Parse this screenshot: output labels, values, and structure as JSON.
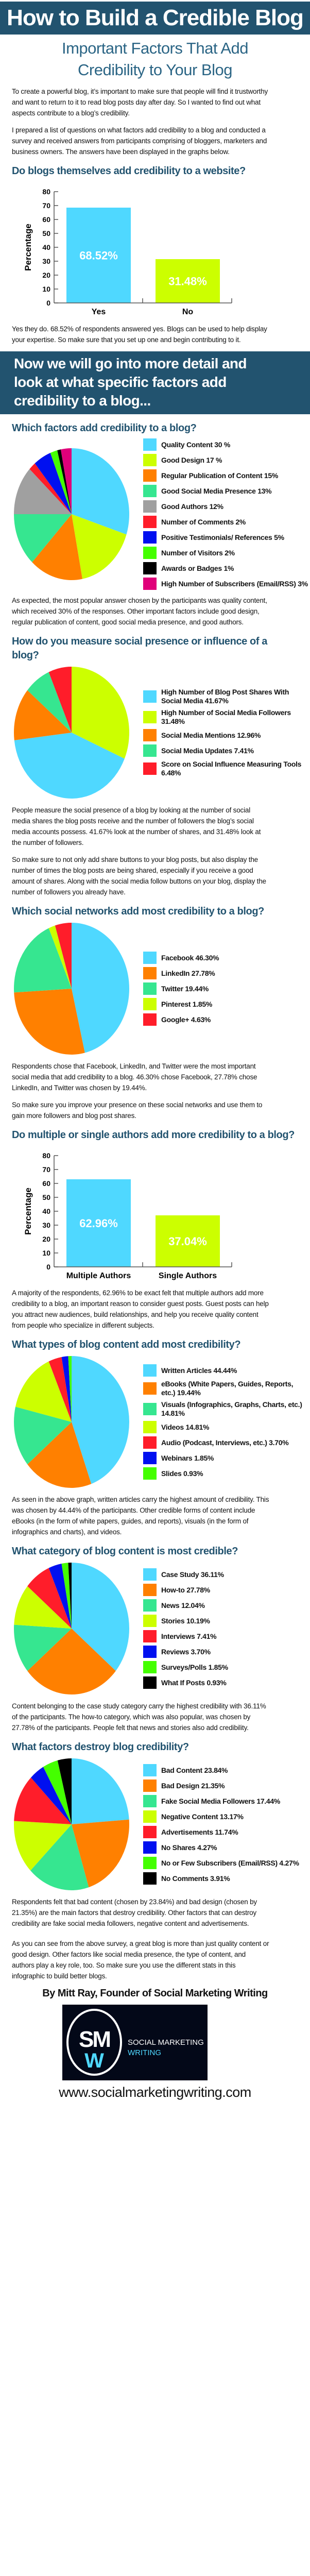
{
  "header": {
    "title": "How to Build a Credible Blog",
    "subtitle_lines": [
      "Important Factors That Add",
      "Credibility to Your Blog"
    ]
  },
  "intro": {
    "paragraphs": [
      "To create a powerful blog, it’s important to make sure that people will find it trustworthy and want to return to it to read blog posts day after day. So I wanted to find out what aspects contribute to a blog’s credibility.",
      "I prepared a list of questions on what factors add credibility to a blog and conducted a survey and received answers from participants comprising of bloggers, marketers and business owners. The answers have been displayed in the graphs below."
    ]
  },
  "banner": {
    "lines": [
      "Now we will go into more detail and",
      "look at what specific factors add",
      "credibility to a blog..."
    ]
  },
  "sections": [
    {
      "heading": "Do blogs themselves add credibility to a website?",
      "paragraphs": [
        "Yes they do. 68.52% of respondents answered yes. Blogs can be used to help display your expertise. So make sure that you set up one and begin contributing to it."
      ]
    },
    {
      "heading": "Which factors add credibility to a blog?",
      "paragraphs": [
        "As expected, the most popular answer chosen by the participants was quality content, which received 30% of the responses. Other important factors include good design, regular publication of content, good social media presence, and good authors."
      ]
    },
    {
      "heading": "How do you measure social presence or influence of a blog?",
      "paragraphs": [
        "People measure the social presence of a blog by looking at the number of social media shares the blog posts receive and the number of followers the blog’s social media accounts possess. 41.67% look at the number of shares, and 31.48% look at the number of followers.",
        "So make sure to not only add share buttons to your blog posts, but also display the number of times the blog posts are being shared, especially if you receive a good amount of shares. Along with the social media follow buttons on your blog, display the number of followers you already have."
      ]
    },
    {
      "heading": "Which social networks add most credibility to a blog?",
      "paragraphs": [
        "Respondents chose that Facebook, LinkedIn, and Twitter were the most important social media that add credibility to a blog. 46.30% chose Facebook, 27.78% chose LinkedIn, and Twitter was chosen by 19.44%.",
        "So make sure you improve your presence on these social networks and use them to gain more followers and blog post shares."
      ]
    },
    {
      "heading": "Do multiple or single authors add more credibility to a blog?",
      "paragraphs": [
        "A majority of the respondents, 62.96% to be exact felt that multiple authors add more credibility to a blog, an important reason to consider guest posts. Guest posts can help you attract new audiences, build relationships, and help you receive quality content from people who specialize in different subjects."
      ]
    },
    {
      "heading": "What types of blog content add most credibility?",
      "paragraphs": [
        "As seen in the above graph, written articles carry the highest amount of credibility. This was chosen by 44.44% of the participants. Other credible forms of content include eBooks (in the form of white papers, guides, and reports), visuals (in the form of infographics and charts), and videos."
      ]
    },
    {
      "heading": "What category of blog content is most credible?",
      "paragraphs": [
        "Content belonging to the case study category carry the highest credibility with 36.11% of the participants. The how-to category, which was also popular, was chosen by 27.78% of the participants. People felt that news and stories also add credibility."
      ]
    },
    {
      "heading": "What factors destroy blog credibility?",
      "paragraphs": [
        "Respondents felt that bad content (chosen by 23.84%) and bad design (chosen by 21.35%) are the main factors that destroy credibility. Other factors that can destroy credibility are fake social media followers, negative content and advertisements."
      ]
    }
  ],
  "conclusion": {
    "paragraphs": [
      "As you can see from the above survey, a great blog is more than just quality content or good design. Other factors like social media presence, the type of content, and authors play a key role, too. So make sure you use the different stats in this infographic to build better blogs."
    ],
    "byline": "By Mitt Ray, Founder of Social Marketing Writing",
    "logo": {
      "mark_top": "SM",
      "mark_bottom": "W",
      "line1": "SOCIAL MARKETING",
      "line2": "WRITING"
    },
    "url": "www.socialmarketingwriting.com"
  },
  "colors": {
    "heading": "#22536f",
    "cyan": "#4fd8ff",
    "lime": "#ccff00",
    "orange": "#ff8000",
    "teal": "#36e690",
    "gray": "#a0a0a0",
    "red": "#ff1d2a",
    "blue": "#0010f0",
    "green": "#44ff00",
    "black": "#000000",
    "magenta": "#e0007a"
  },
  "chart_data": [
    {
      "type": "bar",
      "title": "Do blogs themselves add credibility to a website?",
      "ylabel": "Percentage",
      "ylim": [
        0,
        80
      ],
      "yticks": [
        0,
        10,
        20,
        30,
        40,
        50,
        60,
        70,
        80
      ],
      "categories": [
        "Yes",
        "No"
      ],
      "values": [
        68.52,
        31.48
      ],
      "value_labels": [
        "68.52%",
        "31.48%"
      ],
      "colors": [
        "#4fd8ff",
        "#ccff00"
      ],
      "grid": false
    },
    {
      "type": "pie",
      "title": "Which factors add credibility to a blog?",
      "slices": [
        {
          "name": "Quality Content",
          "value": 30,
          "color": "#4fd8ff"
        },
        {
          "name": "Good Design",
          "value": 17,
          "color": "#ccff00"
        },
        {
          "name": "Regular Publication of Content",
          "value": 15,
          "color": "#ff8000"
        },
        {
          "name": "Good Social Media Presence",
          "value": 13,
          "color": "#36e690"
        },
        {
          "name": "Good Authors",
          "value": 12,
          "color": "#a0a0a0"
        },
        {
          "name": "Number of Comments",
          "value": 2,
          "color": "#ff1d2a"
        },
        {
          "name": "Positive Testimonials/References",
          "value": 5,
          "color": "#0010f0"
        },
        {
          "name": "Number of Visitors",
          "value": 2,
          "color": "#44ff00"
        },
        {
          "name": "Awards or Badges",
          "value": 1,
          "color": "#000000"
        },
        {
          "name": "High Number of Subscribers (Email/RSS)",
          "value": 3,
          "color": "#e0007a"
        }
      ],
      "legend": [
        {
          "label": "Quality Content 30 %",
          "color": "#4fd8ff"
        },
        {
          "label": "Good Design 17 %",
          "color": "#ccff00"
        },
        {
          "label": "Regular Publication of Content 15%",
          "color": "#ff8000"
        },
        {
          "label": "Good Social Media Presence 13%",
          "color": "#36e690"
        },
        {
          "label": "Good Authors 12%",
          "color": "#a0a0a0"
        },
        {
          "label": "Number of Comments 2%",
          "color": "#ff1d2a"
        },
        {
          "label": "Positive Testimonials/ References 5%",
          "color": "#0010f0"
        },
        {
          "label": "Number of Visitors 2%",
          "color": "#44ff00"
        },
        {
          "label": "Awards or Badges 1%",
          "color": "#000000"
        },
        {
          "label": "High Number of Subscribers (Email/RSS) 3%",
          "color": "#e0007a"
        }
      ]
    },
    {
      "type": "pie",
      "title": "How do you measure social presence or influence of a blog?",
      "slices": [
        {
          "name": "High Number of Social Media Followers",
          "value": 31.48,
          "color": "#ccff00"
        },
        {
          "name": "High Number of Blog Post Shares With Social Media",
          "value": 41.67,
          "color": "#4fd8ff"
        },
        {
          "name": "Social Media Mentions",
          "value": 12.96,
          "color": "#ff8000"
        },
        {
          "name": "Social Media Updates",
          "value": 7.41,
          "color": "#36e690"
        },
        {
          "name": "Score on Social Influence Measuring Tools",
          "value": 6.48,
          "color": "#ff1d2a"
        }
      ],
      "legend": [
        {
          "label": "High Number of Blog Post Shares With Social Media 41.67%",
          "color": "#4fd8ff"
        },
        {
          "label": "High Number of Social Media Followers 31.48%",
          "color": "#ccff00"
        },
        {
          "label": "Social Media Mentions 12.96%",
          "color": "#ff8000"
        },
        {
          "label": "Social Media Updates 7.41%",
          "color": "#36e690"
        },
        {
          "label": "Score on Social Influence Measuring Tools 6.48%",
          "color": "#ff1d2a"
        }
      ]
    },
    {
      "type": "pie",
      "title": "Which social networks add most credibility to a blog?",
      "slices": [
        {
          "name": "Facebook",
          "value": 46.3,
          "color": "#4fd8ff"
        },
        {
          "name": "LinkedIn",
          "value": 27.78,
          "color": "#ff8000"
        },
        {
          "name": "Twitter",
          "value": 19.44,
          "color": "#36e690"
        },
        {
          "name": "Pinterest",
          "value": 1.85,
          "color": "#ccff00"
        },
        {
          "name": "Google+",
          "value": 4.63,
          "color": "#ff1d2a"
        }
      ],
      "legend": [
        {
          "label": "Facebook 46.30%",
          "color": "#4fd8ff"
        },
        {
          "label": "LinkedIn 27.78%",
          "color": "#ff8000"
        },
        {
          "label": "Twitter 19.44%",
          "color": "#36e690"
        },
        {
          "label": "Pinterest 1.85%",
          "color": "#ccff00"
        },
        {
          "label": "Google+ 4.63%",
          "color": "#ff1d2a"
        }
      ]
    },
    {
      "type": "bar",
      "title": "Do multiple or single authors add more credibility to a blog?",
      "ylabel": "Percentage",
      "ylim": [
        0,
        80
      ],
      "yticks": [
        0,
        10,
        20,
        30,
        40,
        50,
        60,
        70,
        80
      ],
      "categories": [
        "Multiple Authors",
        "Single Authors"
      ],
      "values": [
        62.96,
        37.04
      ],
      "value_labels": [
        "62.96%",
        "37.04%"
      ],
      "colors": [
        "#4fd8ff",
        "#ccff00"
      ],
      "grid": false
    },
    {
      "type": "pie",
      "title": "What types of blog content add most credibility?",
      "slices": [
        {
          "name": "Written Articles",
          "value": 44.44,
          "color": "#4fd8ff"
        },
        {
          "name": "eBooks (White Papers, Guides, Reports, etc.)",
          "value": 19.44,
          "color": "#ff8000"
        },
        {
          "name": "Visuals (Infographics, Graphs, Charts, etc.)",
          "value": 14.81,
          "color": "#36e690"
        },
        {
          "name": "Videos",
          "value": 14.81,
          "color": "#ccff00"
        },
        {
          "name": "Audio (Podcast, Interviews, etc.)",
          "value": 3.7,
          "color": "#ff1d2a"
        },
        {
          "name": "Webinars",
          "value": 1.85,
          "color": "#0010f0"
        },
        {
          "name": "Slides",
          "value": 0.93,
          "color": "#44ff00"
        }
      ],
      "legend": [
        {
          "label": "Written Articles 44.44%",
          "color": "#4fd8ff"
        },
        {
          "label": "eBooks (White Papers, Guides, Reports, etc.) 19.44%",
          "color": "#ff8000"
        },
        {
          "label": "Visuals (Infographics, Graphs, Charts, etc.) 14.81%",
          "color": "#36e690"
        },
        {
          "label": "Videos 14.81%",
          "color": "#ccff00"
        },
        {
          "label": "Audio (Podcast, Interviews, etc.) 3.70%",
          "color": "#ff1d2a"
        },
        {
          "label": "Webinars 1.85%",
          "color": "#0010f0"
        },
        {
          "label": "Slides 0.93%",
          "color": "#44ff00"
        }
      ]
    },
    {
      "type": "pie",
      "title": "What category of blog content is most credible?",
      "slices": [
        {
          "name": "Case Study",
          "value": 36.11,
          "color": "#4fd8ff"
        },
        {
          "name": "How-to",
          "value": 27.78,
          "color": "#ff8000"
        },
        {
          "name": "News",
          "value": 12.04,
          "color": "#36e690"
        },
        {
          "name": "Stories",
          "value": 10.19,
          "color": "#ccff00"
        },
        {
          "name": "Interviews",
          "value": 7.41,
          "color": "#ff1d2a"
        },
        {
          "name": "Reviews",
          "value": 3.7,
          "color": "#0010f0"
        },
        {
          "name": "Surveys/Polls",
          "value": 1.85,
          "color": "#44ff00"
        },
        {
          "name": "What If Posts",
          "value": 0.93,
          "color": "#000000"
        }
      ],
      "legend": [
        {
          "label": "Case Study 36.11%",
          "color": "#4fd8ff"
        },
        {
          "label": "How-to 27.78%",
          "color": "#ff8000"
        },
        {
          "label": "News 12.04%",
          "color": "#36e690"
        },
        {
          "label": "Stories 10.19%",
          "color": "#ccff00"
        },
        {
          "label": "Interviews 7.41%",
          "color": "#ff1d2a"
        },
        {
          "label": "Reviews 3.70%",
          "color": "#0010f0"
        },
        {
          "label": "Surveys/Polls 1.85%",
          "color": "#44ff00"
        },
        {
          "label": "What If Posts 0.93%",
          "color": "#000000"
        }
      ]
    },
    {
      "type": "pie",
      "title": "What factors destroy blog credibility?",
      "slices": [
        {
          "name": "Bad Content",
          "value": 23.84,
          "color": "#4fd8ff"
        },
        {
          "name": "Bad Design",
          "value": 21.35,
          "color": "#ff8000"
        },
        {
          "name": "Fake Social Media Followers",
          "value": 17.44,
          "color": "#36e690"
        },
        {
          "name": "Negative Content",
          "value": 13.17,
          "color": "#ccff00"
        },
        {
          "name": "Advertisements",
          "value": 11.74,
          "color": "#ff1d2a"
        },
        {
          "name": "No Shares",
          "value": 4.27,
          "color": "#0010f0"
        },
        {
          "name": "No or Few Subscribers (Email/RSS)",
          "value": 4.27,
          "color": "#44ff00"
        },
        {
          "name": "No Comments",
          "value": 3.91,
          "color": "#000000"
        }
      ],
      "legend": [
        {
          "label": "Bad Content 23.84%",
          "color": "#4fd8ff"
        },
        {
          "label": "Bad Design 21.35%",
          "color": "#ff8000"
        },
        {
          "label": "Fake Social Media Followers 17.44%",
          "color": "#36e690"
        },
        {
          "label": "Negative Content 13.17%",
          "color": "#ccff00"
        },
        {
          "label": "Advertisements 11.74%",
          "color": "#ff1d2a"
        },
        {
          "label": "No Shares 4.27%",
          "color": "#0010f0"
        },
        {
          "label": "No or Few Subscribers (Email/RSS) 4.27%",
          "color": "#44ff00"
        },
        {
          "label": "No Comments 3.91%",
          "color": "#000000"
        }
      ]
    }
  ]
}
